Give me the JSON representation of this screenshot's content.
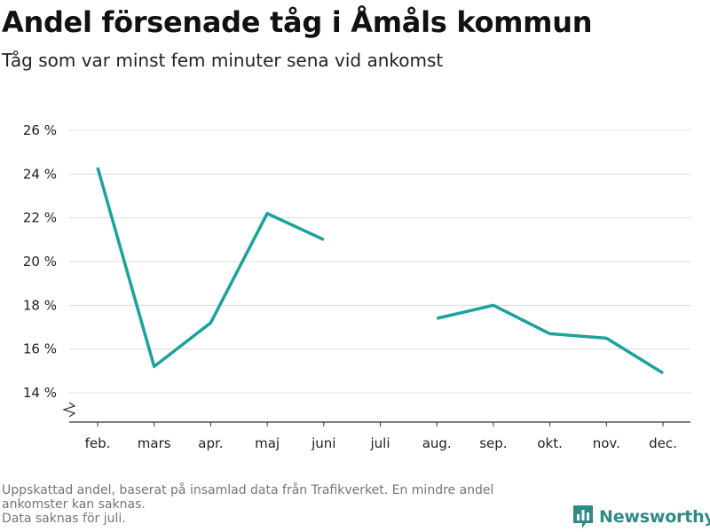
{
  "header": {
    "title": "Andel försenade tåg i Åmåls kommun",
    "subtitle": "Tåg som var minst fem minuter sena vid ankomst"
  },
  "footer": {
    "note_line1": "Uppskattad andel, baserat på insamlad data från Trafikverket. En mindre andel",
    "note_line2": "ankomster kan saknas.",
    "note_line3": "Data saknas för juli.",
    "brand": "Newsworthy"
  },
  "colors": {
    "line": "#1aa39a",
    "grid": "#dddddd",
    "axis": "#333333",
    "brand": "#2f8b84"
  },
  "chart_data": {
    "type": "line",
    "title": "Andel försenade tåg i Åmåls kommun",
    "subtitle": "Tåg som var minst fem minuter sena vid ankomst",
    "xlabel": "",
    "ylabel": "",
    "categories": [
      "feb.",
      "mars",
      "apr.",
      "maj",
      "juni",
      "juli",
      "aug.",
      "sep.",
      "okt.",
      "nov.",
      "dec."
    ],
    "series": [
      {
        "values": [
          24.3,
          15.2,
          17.2,
          22.2,
          21.0,
          null,
          17.4,
          18.0,
          16.7,
          16.5,
          14.9
        ]
      }
    ],
    "yticks": [
      14,
      16,
      18,
      20,
      22,
      24,
      26
    ],
    "ytick_labels": [
      "14 %",
      "16 %",
      "18 %",
      "20 %",
      "22 %",
      "24 %",
      "26 %"
    ],
    "ylim": [
      13.2,
      27
    ],
    "y_axis_broken": true,
    "grid": true,
    "legend": "none"
  }
}
